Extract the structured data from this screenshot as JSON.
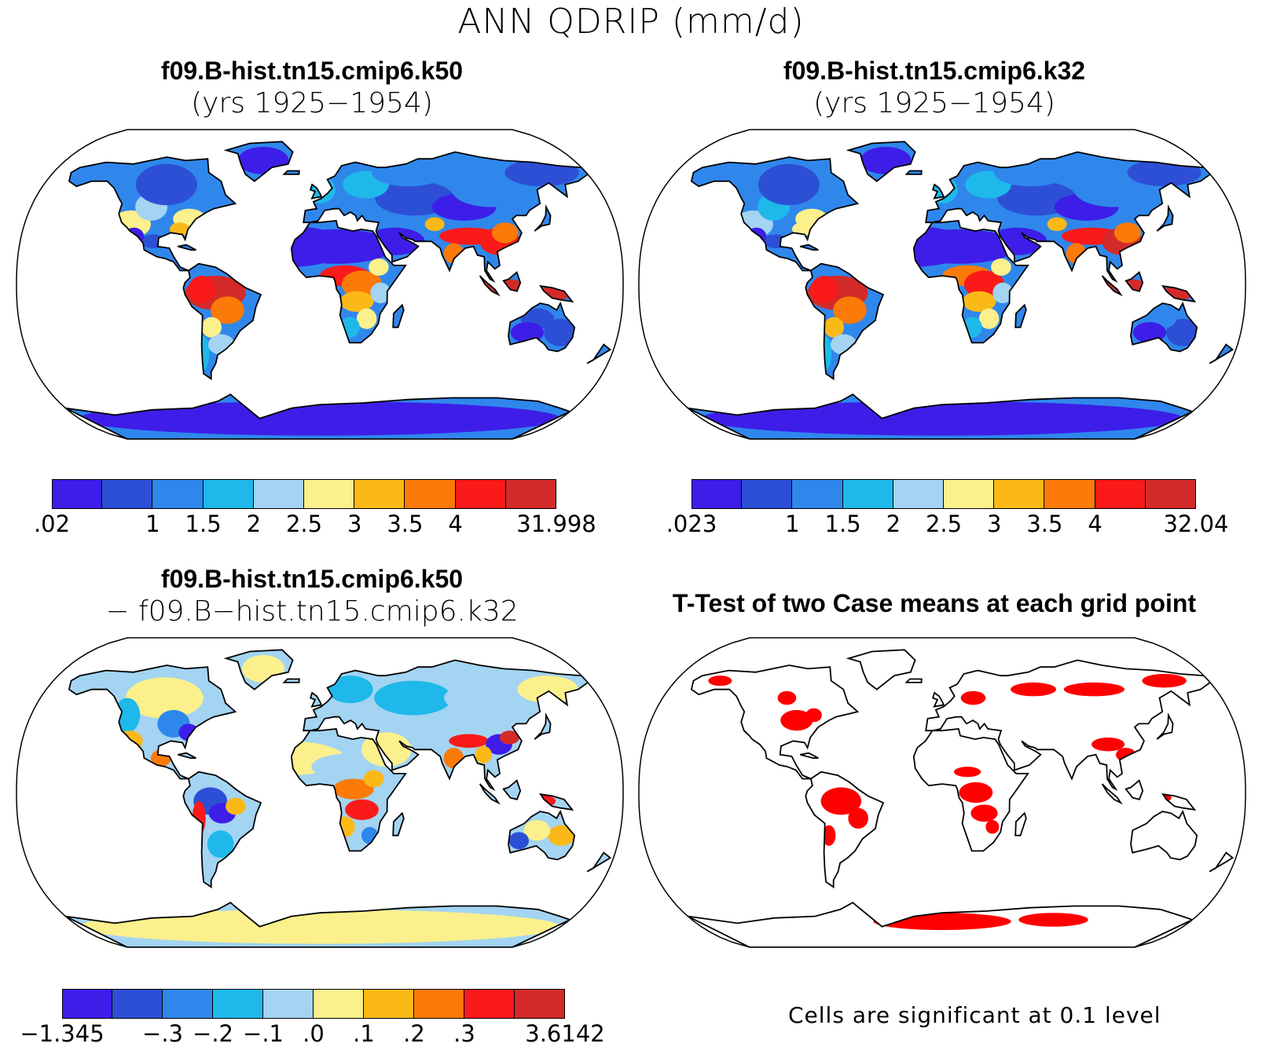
{
  "title": "ANN QDRIP (mm/d)",
  "panels": {
    "top_left": {
      "title": "f09.B-hist.tn15.cmip6.k50",
      "subtitle": "(yrs 1925−1954)"
    },
    "top_right": {
      "title": "f09.B-hist.tn15.cmip6.k32",
      "subtitle": "(yrs 1925−1954)"
    },
    "bottom_left": {
      "title": "f09.B-hist.tn15.cmip6.k50",
      "subtitle": "− f09.B−hist.tn15.cmip6.k32"
    },
    "bottom_right": {
      "title": "T-Test of two Case means at each grid point",
      "note": "Cells are significant at 0.1 level"
    }
  },
  "colorbars": {
    "top_left": {
      "colors": [
        "#3d1ee8",
        "#2d4fd6",
        "#2f87ec",
        "#1eb9ea",
        "#a3d4f2",
        "#fbf08c",
        "#fbb918",
        "#fb7a08",
        "#fa1a1a",
        "#d42a2a"
      ],
      "labels": [
        ".02",
        "",
        "1",
        "1.5",
        "2",
        "2.5",
        "3",
        "3.5",
        "4",
        "31.998"
      ]
    },
    "top_right": {
      "colors": [
        "#3d1ee8",
        "#2d4fd6",
        "#2f87ec",
        "#1eb9ea",
        "#a3d4f2",
        "#fbf08c",
        "#fbb918",
        "#fb7a08",
        "#fa1a1a",
        "#d42a2a"
      ],
      "labels": [
        ".023",
        "",
        "1",
        "1.5",
        "2",
        "2.5",
        "3",
        "3.5",
        "4",
        "32.04"
      ]
    },
    "bottom_left": {
      "colors": [
        "#3d1ee8",
        "#2d4fd6",
        "#2f87ec",
        "#1eb9ea",
        "#a3d4f2",
        "#fbf08c",
        "#fbb918",
        "#fb7a08",
        "#fa1a1a",
        "#d42a2a"
      ],
      "labels": [
        "−1.345",
        "",
        "−.3",
        "−.2",
        "−.1",
        ".0",
        ".1",
        ".2",
        ".3",
        "3.6142"
      ]
    }
  },
  "map_colors": {
    "ocean": "#ffffff",
    "outline": "#000000",
    "significant": "#ff0000"
  }
}
